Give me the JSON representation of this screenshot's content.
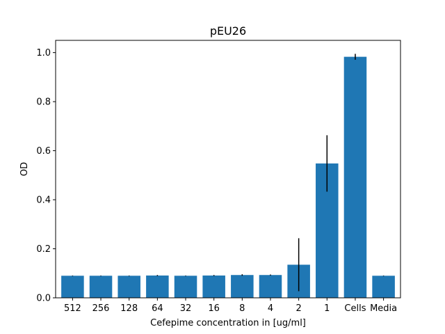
{
  "chart_data": {
    "type": "bar",
    "title": "pEU26",
    "xlabel": "Cefepime concentration in [ug/ml]",
    "ylabel": "OD",
    "categories": [
      "512",
      "256",
      "128",
      "64",
      "32",
      "16",
      "8",
      "4",
      "2",
      "1",
      "Cells",
      "Media"
    ],
    "values": [
      0.09,
      0.09,
      0.09,
      0.091,
      0.09,
      0.091,
      0.093,
      0.093,
      0.135,
      0.548,
      0.983,
      0.09
    ],
    "errors": [
      0.001,
      0.001,
      0.001,
      0.002,
      0.001,
      0.002,
      0.003,
      0.002,
      0.108,
      0.115,
      0.012,
      0.001
    ],
    "ylim": [
      0,
      1.05
    ],
    "yticks": [
      "0.0",
      "0.2",
      "0.4",
      "0.6",
      "0.8",
      "1.0"
    ],
    "bar_color": "#1f77b4",
    "error_color": "#000000",
    "grid": false,
    "legend": false
  }
}
